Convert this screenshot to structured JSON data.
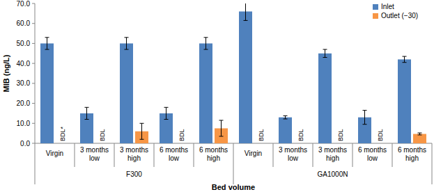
{
  "chart_data": {
    "type": "bar",
    "x_label": "Bed volume",
    "y_label": "MIB (ng/L)",
    "categories": [
      "Virgin",
      "3 months low",
      "3 months high",
      "6 months low",
      "6 months high",
      "Virgin",
      "3 months low",
      "3 months high",
      "6 months low",
      "6 months high"
    ],
    "category_groups": [
      "F300",
      "F300",
      "F300",
      "F300",
      "F300",
      "GA1000N",
      "GA1000N",
      "GA1000N",
      "GA1000N",
      "GA1000N"
    ],
    "series": [
      {
        "name": "Inlet",
        "color": "#4f81bd",
        "values": [
          50,
          15,
          50,
          15,
          50,
          66,
          13,
          45,
          13,
          42
        ],
        "errors": [
          3,
          3,
          3,
          3,
          3,
          4.5,
          0.8,
          2,
          3.5,
          1.5
        ]
      },
      {
        "name": "Outlet (−30)",
        "color": "#f79646",
        "values": [
          null,
          null,
          6,
          null,
          7.5,
          null,
          null,
          null,
          null,
          4.7
        ],
        "errors": [
          null,
          null,
          4,
          null,
          4,
          null,
          null,
          null,
          null,
          0.5
        ],
        "value_labels": [
          "BDL*",
          "BDL",
          null,
          "BDL",
          null,
          "BDL",
          "BDL",
          "BDL",
          "BDL",
          null
        ]
      }
    ],
    "ylim": [
      0,
      70
    ],
    "yticks": [
      {
        "value": 0,
        "label": "0.0"
      },
      {
        "value": 10,
        "label": "10.0"
      },
      {
        "value": 20,
        "label": "20.0"
      },
      {
        "value": 30,
        "label": "30.0"
      },
      {
        "value": 40,
        "label": "40.0"
      },
      {
        "value": 50,
        "label": "50.0"
      },
      {
        "value": 60,
        "label": "60.0"
      },
      {
        "value": 70,
        "label": "70.0"
      }
    ],
    "grid": false,
    "legend": "upper right"
  }
}
